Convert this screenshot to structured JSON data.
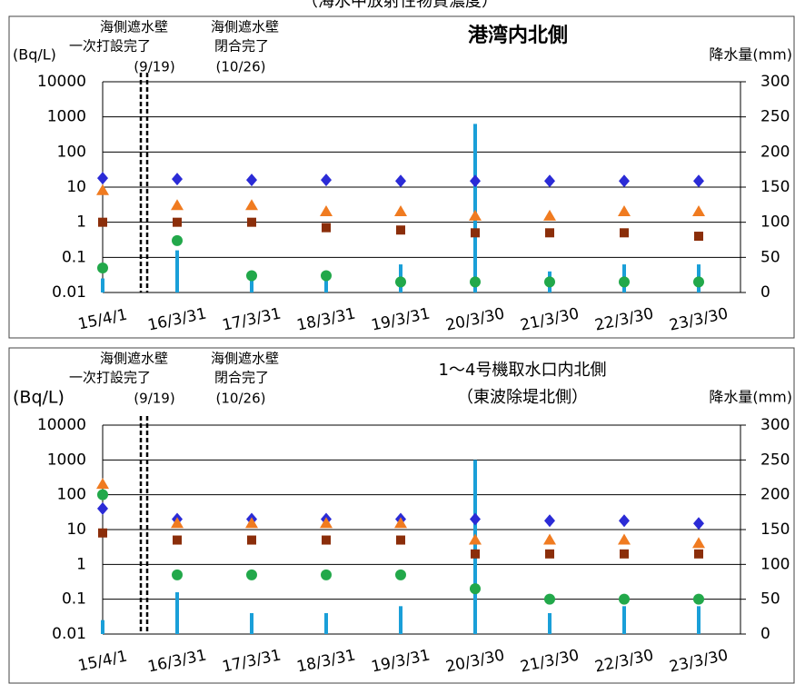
{
  "page_title": "（海水中放射性物質濃度）",
  "chart_data": [
    {
      "type": "scatter",
      "title": "港湾内北側",
      "ylabel": "(Bq/L)",
      "y2label": "降水量(mm)",
      "annotations": [
        "海側遮水壁",
        "一次打設完了",
        "(9/19)",
        "海側遮水壁",
        "閉合完了",
        "(10/26)"
      ],
      "categories": [
        "15/4/1",
        "16/3/31",
        "17/3/31",
        "18/3/31",
        "19/3/31",
        "20/3/30",
        "21/3/30",
        "22/3/30",
        "23/3/30"
      ],
      "log_y": true,
      "ylim": [
        0.01,
        10000
      ],
      "yticks": [
        0.01,
        0.1,
        1,
        10,
        100,
        1000,
        10000
      ],
      "y2lim": [
        0,
        300
      ],
      "y2ticks": [
        0,
        50,
        100,
        150,
        200,
        250,
        300
      ],
      "grid": true,
      "series": [
        {
          "color": "#1a9fd8",
          "marker": "bar",
          "axis": "y2",
          "values": [
            20,
            60,
            30,
            30,
            40,
            240,
            30,
            40,
            40
          ]
        },
        {
          "color": "#2b2bd6",
          "marker": "diamond",
          "values": [
            18,
            17,
            16,
            16,
            15,
            15,
            15,
            15,
            15
          ]
        },
        {
          "color": "#f07b20",
          "marker": "triangle",
          "values": [
            8,
            3,
            3,
            2,
            2,
            1.5,
            1.5,
            2,
            2
          ]
        },
        {
          "color": "#8b2e0a",
          "marker": "square",
          "values": [
            1,
            1,
            1,
            0.7,
            0.6,
            0.5,
            0.5,
            0.5,
            0.4
          ]
        },
        {
          "color": "#22a84a",
          "marker": "circle",
          "values": [
            0.05,
            0.3,
            0.03,
            0.03,
            0.02,
            0.02,
            0.02,
            0.02,
            0.02
          ]
        }
      ]
    },
    {
      "type": "scatter",
      "title": "1～4号機取水口内北側",
      "subtitle": "（東波除堤北側）",
      "ylabel": "(Bq/L)",
      "y2label": "降水量(mm)",
      "annotations": [
        "海側遮水壁",
        "一次打設完了",
        "(9/19)",
        "海側遮水壁",
        "閉合完了",
        "(10/26)"
      ],
      "categories": [
        "15/4/1",
        "16/3/31",
        "17/3/31",
        "18/3/31",
        "19/3/31",
        "20/3/30",
        "21/3/30",
        "22/3/30",
        "23/3/30"
      ],
      "log_y": true,
      "ylim": [
        0.01,
        10000
      ],
      "yticks": [
        0.01,
        0.1,
        1,
        10,
        100,
        1000,
        10000
      ],
      "y2lim": [
        0,
        300
      ],
      "y2ticks": [
        0,
        50,
        100,
        150,
        200,
        250,
        300
      ],
      "grid": true,
      "series": [
        {
          "color": "#1a9fd8",
          "marker": "bar",
          "axis": "y2",
          "values": [
            20,
            60,
            30,
            30,
            40,
            250,
            30,
            40,
            40
          ]
        },
        {
          "color": "#2b2bd6",
          "marker": "diamond",
          "values": [
            40,
            20,
            20,
            20,
            20,
            20,
            18,
            18,
            15
          ]
        },
        {
          "color": "#f07b20",
          "marker": "triangle",
          "values": [
            200,
            15,
            15,
            15,
            15,
            5,
            5,
            5,
            4
          ]
        },
        {
          "color": "#8b2e0a",
          "marker": "square",
          "values": [
            8,
            5,
            5,
            5,
            5,
            2,
            2,
            2,
            2
          ]
        },
        {
          "color": "#22a84a",
          "marker": "circle",
          "values": [
            100,
            0.5,
            0.5,
            0.5,
            0.5,
            0.2,
            0.1,
            0.1,
            0.1
          ]
        }
      ]
    }
  ]
}
